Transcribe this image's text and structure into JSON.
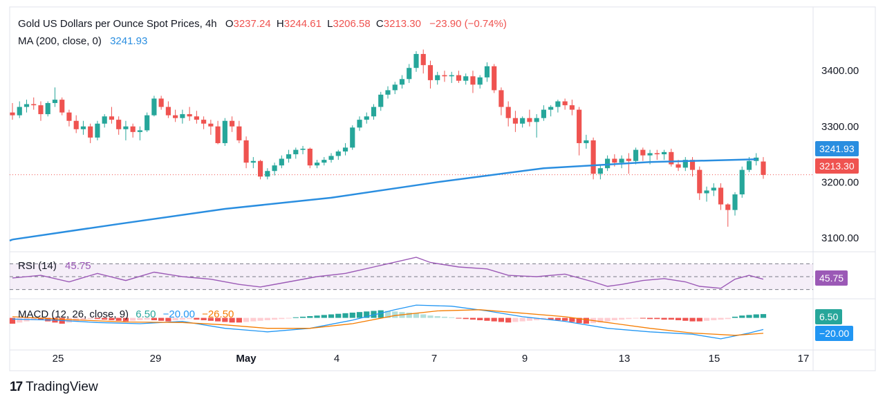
{
  "header": {
    "title": "Gold US Dollars per Ounce Spot Prices, 4h",
    "open_label": "O",
    "open": "3237.24",
    "high_label": "H",
    "high": "3244.61",
    "low_label": "L",
    "low": "3206.58",
    "close_label": "C",
    "close": "3213.30",
    "change": "−23.90 (−0.74%)",
    "ma_label": "MA (200, close, 0)",
    "ma_value": "3241.93"
  },
  "colors": {
    "up": "#26a69a",
    "down": "#ef5350",
    "ma": "#2a8ee0",
    "rsi": "#9b59b6",
    "macd": "#2196f3",
    "signal": "#f57c00"
  },
  "price_badges": {
    "ma": "3241.93",
    "last": "3213.30"
  },
  "rsi_panel": {
    "label": "RSI (14)",
    "value": "45.75"
  },
  "macd_panel": {
    "label": "MACD (12, 26, close, 9)",
    "hist": "6.50",
    "macd": "−20.00",
    "signal": "−26.50",
    "badge_hist": "6.50",
    "badge_macd": "−20.00"
  },
  "brand": {
    "name": "TradingView"
  },
  "chart_data": {
    "type": "candlestick",
    "title": "Gold US Dollars per Ounce Spot Prices, 4h",
    "y_ticks": [
      "3400.00",
      "3300.00",
      "3200.00",
      "3100.00"
    ],
    "ylim": [
      3080,
      3440
    ],
    "x_ticks": [
      "25",
      "29",
      "May",
      "4",
      "7",
      "9",
      "13",
      "15",
      "17"
    ],
    "candles": [
      [
        3325,
        3342,
        3312,
        3320
      ],
      [
        3320,
        3345,
        3315,
        3335
      ],
      [
        3335,
        3348,
        3325,
        3340
      ],
      [
        3340,
        3352,
        3330,
        3338
      ],
      [
        3338,
        3345,
        3310,
        3322
      ],
      [
        3322,
        3345,
        3318,
        3342
      ],
      [
        3342,
        3370,
        3335,
        3348
      ],
      [
        3348,
        3352,
        3320,
        3325
      ],
      [
        3325,
        3330,
        3300,
        3310
      ],
      [
        3310,
        3320,
        3288,
        3295
      ],
      [
        3295,
        3310,
        3285,
        3300
      ],
      [
        3300,
        3305,
        3270,
        3280
      ],
      [
        3280,
        3310,
        3275,
        3305
      ],
      [
        3305,
        3322,
        3298,
        3318
      ],
      [
        3318,
        3335,
        3305,
        3312
      ],
      [
        3312,
        3318,
        3285,
        3295
      ],
      [
        3295,
        3310,
        3275,
        3300
      ],
      [
        3300,
        3305,
        3280,
        3290
      ],
      [
        3290,
        3300,
        3275,
        3293
      ],
      [
        3293,
        3325,
        3290,
        3320
      ],
      [
        3320,
        3355,
        3318,
        3350
      ],
      [
        3350,
        3355,
        3330,
        3335
      ],
      [
        3335,
        3345,
        3315,
        3320
      ],
      [
        3320,
        3330,
        3308,
        3315
      ],
      [
        3315,
        3330,
        3305,
        3322
      ],
      [
        3322,
        3335,
        3310,
        3318
      ],
      [
        3318,
        3328,
        3305,
        3312
      ],
      [
        3312,
        3318,
        3295,
        3305
      ],
      [
        3305,
        3312,
        3285,
        3300
      ],
      [
        3300,
        3310,
        3268,
        3270
      ],
      [
        3270,
        3315,
        3265,
        3310
      ],
      [
        3310,
        3318,
        3290,
        3300
      ],
      [
        3300,
        3310,
        3270,
        3275
      ],
      [
        3275,
        3282,
        3225,
        3235
      ],
      [
        3235,
        3245,
        3225,
        3238
      ],
      [
        3238,
        3240,
        3205,
        3210
      ],
      [
        3210,
        3225,
        3205,
        3220
      ],
      [
        3220,
        3235,
        3212,
        3230
      ],
      [
        3230,
        3248,
        3225,
        3242
      ],
      [
        3242,
        3258,
        3235,
        3250
      ],
      [
        3250,
        3262,
        3242,
        3258
      ],
      [
        3258,
        3265,
        3250,
        3260
      ],
      [
        3260,
        3262,
        3225,
        3230
      ],
      [
        3230,
        3240,
        3225,
        3235
      ],
      [
        3235,
        3245,
        3230,
        3240
      ],
      [
        3240,
        3252,
        3235,
        3247
      ],
      [
        3247,
        3258,
        3240,
        3255
      ],
      [
        3255,
        3270,
        3248,
        3262
      ],
      [
        3262,
        3302,
        3258,
        3298
      ],
      [
        3298,
        3318,
        3292,
        3312
      ],
      [
        3312,
        3325,
        3305,
        3318
      ],
      [
        3318,
        3340,
        3312,
        3335
      ],
      [
        3335,
        3362,
        3328,
        3357
      ],
      [
        3357,
        3372,
        3350,
        3365
      ],
      [
        3365,
        3380,
        3358,
        3375
      ],
      [
        3375,
        3392,
        3368,
        3385
      ],
      [
        3385,
        3412,
        3378,
        3405
      ],
      [
        3405,
        3435,
        3398,
        3430
      ],
      [
        3430,
        3438,
        3395,
        3410
      ],
      [
        3410,
        3418,
        3368,
        3383
      ],
      [
        3383,
        3398,
        3375,
        3392
      ],
      [
        3392,
        3400,
        3380,
        3390
      ],
      [
        3390,
        3398,
        3378,
        3392
      ],
      [
        3392,
        3400,
        3378,
        3382
      ],
      [
        3382,
        3395,
        3375,
        3390
      ],
      [
        3390,
        3400,
        3360,
        3375
      ],
      [
        3375,
        3392,
        3368,
        3388
      ],
      [
        3388,
        3415,
        3380,
        3408
      ],
      [
        3408,
        3412,
        3360,
        3365
      ],
      [
        3365,
        3370,
        3320,
        3335
      ],
      [
        3335,
        3345,
        3300,
        3315
      ],
      [
        3315,
        3328,
        3290,
        3305
      ],
      [
        3305,
        3318,
        3298,
        3315
      ],
      [
        3315,
        3330,
        3300,
        3308
      ],
      [
        3308,
        3322,
        3280,
        3315
      ],
      [
        3315,
        3338,
        3310,
        3330
      ],
      [
        3330,
        3338,
        3318,
        3335
      ],
      [
        3335,
        3348,
        3325,
        3345
      ],
      [
        3345,
        3350,
        3330,
        3338
      ],
      [
        3338,
        3348,
        3320,
        3330
      ],
      [
        3330,
        3335,
        3248,
        3270
      ],
      [
        3270,
        3285,
        3260,
        3275
      ],
      [
        3275,
        3280,
        3205,
        3215
      ],
      [
        3215,
        3232,
        3205,
        3225
      ],
      [
        3225,
        3248,
        3220,
        3242
      ],
      [
        3242,
        3250,
        3228,
        3235
      ],
      [
        3235,
        3248,
        3225,
        3242
      ],
      [
        3242,
        3252,
        3215,
        3238
      ],
      [
        3238,
        3262,
        3232,
        3258
      ],
      [
        3258,
        3262,
        3238,
        3248
      ],
      [
        3248,
        3258,
        3232,
        3252
      ],
      [
        3252,
        3258,
        3240,
        3250
      ],
      [
        3250,
        3258,
        3240,
        3254
      ],
      [
        3254,
        3260,
        3228,
        3232
      ],
      [
        3232,
        3240,
        3220,
        3226
      ],
      [
        3226,
        3245,
        3220,
        3240
      ],
      [
        3240,
        3245,
        3210,
        3222
      ],
      [
        3222,
        3228,
        3168,
        3180
      ],
      [
        3180,
        3192,
        3165,
        3185
      ],
      [
        3185,
        3198,
        3175,
        3190
      ],
      [
        3190,
        3198,
        3150,
        3160
      ],
      [
        3160,
        3162,
        3120,
        3150
      ],
      [
        3150,
        3182,
        3140,
        3178
      ],
      [
        3178,
        3228,
        3172,
        3222
      ],
      [
        3222,
        3245,
        3218,
        3238
      ],
      [
        3238,
        3252,
        3230,
        3244
      ],
      [
        3237,
        3245,
        3206,
        3213
      ]
    ],
    "ma200_points": [
      [
        0,
        3097
      ],
      [
        15,
        3125
      ],
      [
        30,
        3152
      ],
      [
        45,
        3172
      ],
      [
        60,
        3200
      ],
      [
        75,
        3225
      ],
      [
        90,
        3236
      ],
      [
        105,
        3241
      ]
    ],
    "ma200_last": 3241.93,
    "last_close": 3213.3,
    "rsi": {
      "label": "RSI (14)",
      "last": 45.75,
      "levels": [
        70,
        50,
        30
      ],
      "ylim": [
        20,
        80
      ],
      "points": [
        [
          0,
          48
        ],
        [
          4,
          52
        ],
        [
          8,
          42
        ],
        [
          12,
          55
        ],
        [
          16,
          44
        ],
        [
          20,
          57
        ],
        [
          24,
          50
        ],
        [
          28,
          46
        ],
        [
          32,
          38
        ],
        [
          35,
          34
        ],
        [
          39,
          42
        ],
        [
          43,
          50
        ],
        [
          47,
          55
        ],
        [
          51,
          65
        ],
        [
          55,
          75
        ],
        [
          57,
          80
        ],
        [
          59,
          72
        ],
        [
          63,
          65
        ],
        [
          67,
          62
        ],
        [
          70,
          52
        ],
        [
          74,
          50
        ],
        [
          78,
          54
        ],
        [
          82,
          42
        ],
        [
          84,
          35
        ],
        [
          86,
          38
        ],
        [
          89,
          44
        ],
        [
          92,
          47
        ],
        [
          95,
          42
        ],
        [
          97,
          35
        ],
        [
          100,
          32
        ],
        [
          102,
          46
        ],
        [
          104,
          52
        ],
        [
          106,
          46
        ]
      ]
    },
    "macd": {
      "label": "MACD (12, 26, close, 9)",
      "last_hist": 6.5,
      "last_macd": -20.0,
      "last_signal": -26.5,
      "ylim": [
        -48,
        28
      ],
      "macd_points": [
        [
          0,
          -2
        ],
        [
          6,
          -4
        ],
        [
          12,
          -8
        ],
        [
          18,
          -10
        ],
        [
          24,
          -6
        ],
        [
          30,
          -18
        ],
        [
          36,
          -24
        ],
        [
          42,
          -18
        ],
        [
          48,
          -4
        ],
        [
          54,
          14
        ],
        [
          57,
          22
        ],
        [
          62,
          20
        ],
        [
          67,
          12
        ],
        [
          72,
          2
        ],
        [
          78,
          -6
        ],
        [
          84,
          -18
        ],
        [
          90,
          -24
        ],
        [
          96,
          -28
        ],
        [
          100,
          -36
        ],
        [
          104,
          -26
        ],
        [
          106,
          -20
        ]
      ],
      "signal_points": [
        [
          0,
          2
        ],
        [
          8,
          -3
        ],
        [
          16,
          -7
        ],
        [
          24,
          -8
        ],
        [
          30,
          -12
        ],
        [
          36,
          -18
        ],
        [
          42,
          -18
        ],
        [
          48,
          -10
        ],
        [
          54,
          4
        ],
        [
          60,
          12
        ],
        [
          66,
          14
        ],
        [
          72,
          8
        ],
        [
          78,
          2
        ],
        [
          84,
          -8
        ],
        [
          90,
          -18
        ],
        [
          96,
          -26
        ],
        [
          102,
          -30
        ],
        [
          106,
          -26.5
        ]
      ],
      "hist": [
        -10,
        -8,
        -6,
        -4,
        -4,
        -6,
        -8,
        -10,
        -8,
        -6,
        -4,
        -2,
        -2,
        -3,
        -4,
        -5,
        -6,
        -5,
        -4,
        -3,
        -4,
        -5,
        -6,
        -4,
        -3,
        -2,
        -3,
        -4,
        -5,
        -6,
        -7,
        -8,
        -8,
        -7,
        -6,
        -5,
        -4,
        -3,
        -2,
        -1,
        1,
        2,
        3,
        4,
        5,
        6,
        7,
        8,
        9,
        10,
        11,
        12,
        13,
        12,
        11,
        10,
        9,
        8,
        6,
        4,
        3,
        2,
        1,
        -1,
        -2,
        -3,
        -4,
        -5,
        -6,
        -7,
        -8,
        -7,
        -6,
        -5,
        -4,
        -3,
        -3,
        -4,
        -5,
        -7,
        -9,
        -10,
        -9,
        -8,
        -6,
        -4,
        -3,
        -2,
        -1,
        -1,
        -2,
        -2,
        -3,
        -3,
        -4,
        -5,
        -6,
        -6,
        -5,
        -4,
        -3,
        -2,
        2,
        4,
        5,
        6,
        6.5
      ]
    }
  }
}
